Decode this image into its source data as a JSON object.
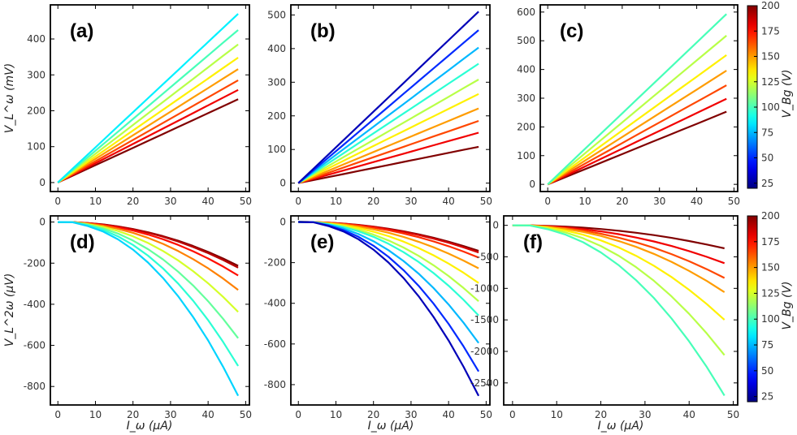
{
  "colorbar": {
    "label": "V_Bg (V)",
    "min": 20,
    "max": 200,
    "ticks": [
      25,
      50,
      75,
      100,
      125,
      150,
      175,
      200
    ]
  },
  "xaxis": {
    "label": "I_ω (μA)",
    "ticks": [
      0,
      10,
      20,
      30,
      40,
      50
    ]
  },
  "chart_data": [
    {
      "type": "line",
      "panel": "(a)",
      "ylabel": "V_L^ω (mV)",
      "xlim": [
        -2,
        51
      ],
      "ylim": [
        -25,
        495
      ],
      "yticks": [
        0,
        100,
        200,
        300,
        400
      ],
      "x_end": 48,
      "series": [
        {
          "name": "200 V",
          "vbg": 200,
          "end": 232
        },
        {
          "name": "180 V",
          "vbg": 180,
          "end": 258
        },
        {
          "name": "165 V",
          "vbg": 165,
          "end": 285
        },
        {
          "name": "150 V",
          "vbg": 150,
          "end": 316
        },
        {
          "name": "135 V",
          "vbg": 135,
          "end": 348
        },
        {
          "name": "120 V",
          "vbg": 120,
          "end": 385
        },
        {
          "name": "100 V",
          "vbg": 100,
          "end": 425
        },
        {
          "name": "85 V",
          "vbg": 85,
          "end": 470
        }
      ]
    },
    {
      "type": "line",
      "panel": "(b)",
      "ylabel": "",
      "xlim": [
        -2,
        51
      ],
      "ylim": [
        -25,
        530
      ],
      "yticks": [
        0,
        100,
        200,
        300,
        400,
        500
      ],
      "x_end": 48,
      "series": [
        {
          "name": "200 V",
          "vbg": 200,
          "end": 108
        },
        {
          "name": "180 V",
          "vbg": 180,
          "end": 150
        },
        {
          "name": "165 V",
          "vbg": 165,
          "end": 185
        },
        {
          "name": "150 V",
          "vbg": 150,
          "end": 222
        },
        {
          "name": "135 V",
          "vbg": 135,
          "end": 265
        },
        {
          "name": "120 V",
          "vbg": 120,
          "end": 308
        },
        {
          "name": "95 V",
          "vbg": 95,
          "end": 355
        },
        {
          "name": "75 V",
          "vbg": 75,
          "end": 403
        },
        {
          "name": "50 V",
          "vbg": 50,
          "end": 455
        },
        {
          "name": "30 V",
          "vbg": 30,
          "end": 510
        }
      ]
    },
    {
      "type": "line",
      "panel": "(c)",
      "ylabel": "",
      "xlim": [
        -2,
        51
      ],
      "ylim": [
        -25,
        625
      ],
      "yticks": [
        0,
        100,
        200,
        300,
        400,
        500,
        600
      ],
      "x_end": 48,
      "series": [
        {
          "name": "200 V",
          "vbg": 200,
          "end": 253
        },
        {
          "name": "180 V",
          "vbg": 180,
          "end": 298
        },
        {
          "name": "165 V",
          "vbg": 165,
          "end": 345
        },
        {
          "name": "150 V",
          "vbg": 150,
          "end": 396
        },
        {
          "name": "135 V",
          "vbg": 135,
          "end": 450
        },
        {
          "name": "120 V",
          "vbg": 120,
          "end": 518
        },
        {
          "name": "100 V",
          "vbg": 100,
          "end": 593
        }
      ]
    },
    {
      "type": "line",
      "panel": "(d)",
      "ylabel": "V_L^2ω (μV)",
      "xlim": [
        -2,
        51
      ],
      "ylim": [
        -890,
        30
      ],
      "yticks": [
        0,
        -200,
        -400,
        -600,
        -800
      ],
      "x_end": 48,
      "series": [
        {
          "name": "200 V",
          "vbg": 200,
          "end": -213
        },
        {
          "name": "190 V",
          "vbg": 190,
          "end": -222
        },
        {
          "name": "175 V",
          "vbg": 175,
          "end": -260
        },
        {
          "name": "155 V",
          "vbg": 155,
          "end": -330
        },
        {
          "name": "125 V",
          "vbg": 125,
          "end": -437
        },
        {
          "name": "105 V",
          "vbg": 105,
          "end": -565
        },
        {
          "name": "95 V",
          "vbg": 95,
          "end": -700
        },
        {
          "name": "80 V",
          "vbg": 80,
          "end": -845
        }
      ]
    },
    {
      "type": "line",
      "panel": "(e)",
      "ylabel": "",
      "xlim": [
        -2,
        51
      ],
      "ylim": [
        -900,
        30
      ],
      "yticks": [
        0,
        -200,
        -400,
        -600,
        -800
      ],
      "x_end": 48,
      "series": [
        {
          "name": "200 V",
          "vbg": 200,
          "end": -142
        },
        {
          "name": "185 V",
          "vbg": 185,
          "end": -150
        },
        {
          "name": "170 V",
          "vbg": 170,
          "end": -175
        },
        {
          "name": "150 V",
          "vbg": 150,
          "end": -228
        },
        {
          "name": "135 V",
          "vbg": 135,
          "end": -300
        },
        {
          "name": "120 V",
          "vbg": 120,
          "end": -390
        },
        {
          "name": "95 V",
          "vbg": 95,
          "end": -460
        },
        {
          "name": "75 V",
          "vbg": 75,
          "end": -595
        },
        {
          "name": "50 V",
          "vbg": 50,
          "end": -735
        },
        {
          "name": "30 V",
          "vbg": 30,
          "end": -855
        }
      ]
    },
    {
      "type": "line",
      "panel": "(f)",
      "ylabel": "",
      "xlim": [
        -2,
        51
      ],
      "ylim": [
        -2850,
        150
      ],
      "yticks": [
        0,
        -500,
        -1000,
        -1500,
        -2000,
        -2500
      ],
      "x_end": 48,
      "series": [
        {
          "name": "200 V",
          "vbg": 200,
          "end": -365
        },
        {
          "name": "180 V",
          "vbg": 180,
          "end": -600
        },
        {
          "name": "165 V",
          "vbg": 165,
          "end": -835
        },
        {
          "name": "150 V",
          "vbg": 150,
          "end": -1060
        },
        {
          "name": "135 V",
          "vbg": 135,
          "end": -1500
        },
        {
          "name": "120 V",
          "vbg": 120,
          "end": -2060
        },
        {
          "name": "100 V",
          "vbg": 100,
          "end": -2700
        }
      ]
    }
  ]
}
